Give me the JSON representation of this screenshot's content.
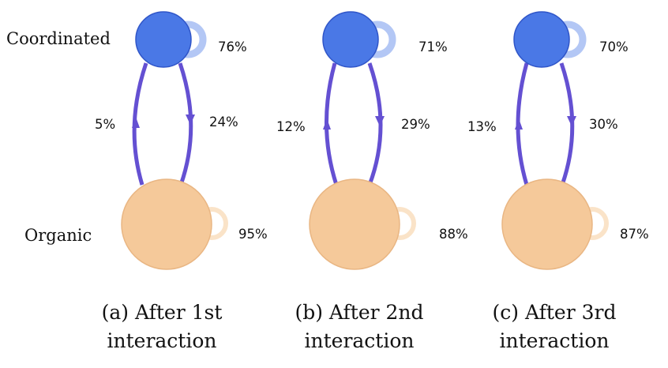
{
  "labels": {
    "coordinated": "Coordinated",
    "organic": "Organic"
  },
  "colors": {
    "coordinated_fill": "#4a78e6",
    "coordinated_stroke": "#2f55c8",
    "coordinated_loop": "#b3c7f5",
    "organic_fill": "#f5c99a",
    "organic_stroke": "#e9b683",
    "organic_loop": "#fae3c8",
    "arrow": "#6450d2"
  },
  "panels": [
    {
      "caption_line1": "(a) After 1st",
      "caption_line2": "interaction",
      "coordinated_self": "76%",
      "organic_self": "95%",
      "organic_to_coordinated": "5%",
      "coordinated_to_organic": "24%"
    },
    {
      "caption_line1": "(b) After 2nd",
      "caption_line2": "interaction",
      "coordinated_self": "71%",
      "organic_self": "88%",
      "organic_to_coordinated": "12%",
      "coordinated_to_organic": "29%"
    },
    {
      "caption_line1": "(c) After 3rd",
      "caption_line2": "interaction",
      "coordinated_self": "70%",
      "organic_self": "87%",
      "organic_to_coordinated": "13%",
      "coordinated_to_organic": "30%"
    }
  ]
}
